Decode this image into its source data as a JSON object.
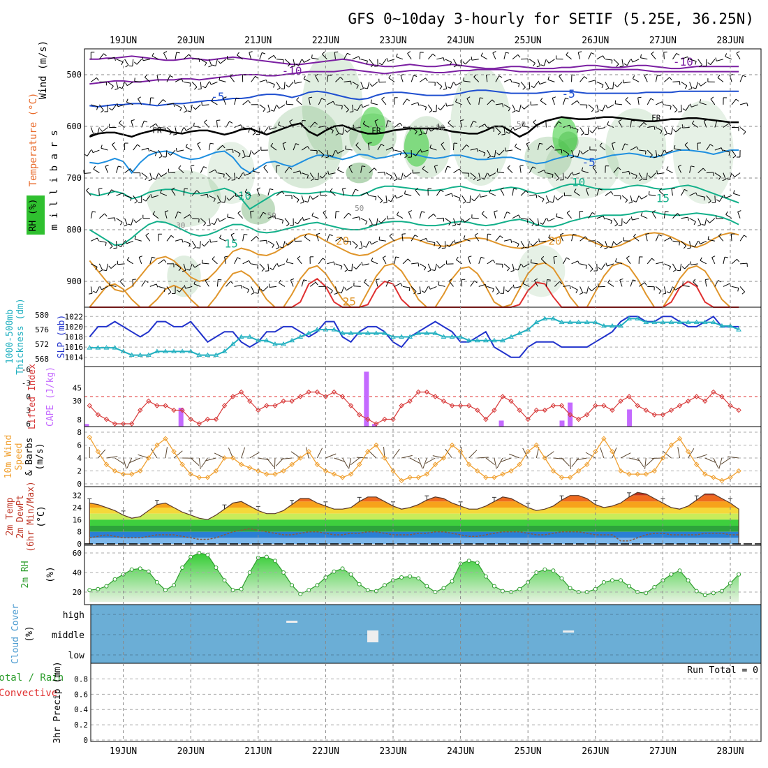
{
  "title": "GFS 0~10day 3-hourly for SETIF (5.25E, 36.25N)",
  "days": [
    "19JUN",
    "20JUN",
    "21JUN",
    "22JUN",
    "23JUN",
    "24JUN",
    "25JUN",
    "26JUN",
    "27JUN",
    "28JUN"
  ],
  "colors": {
    "temp_purple": "#7b1fa2",
    "temp_blue": "#1f4fd0",
    "temp_lightblue": "#1e8fe0",
    "temp_teal": "#12b08a",
    "temp_orange": "#e0952a",
    "temp_red": "#e03030",
    "freezing": "#000000",
    "rh_shade": "#2fc02f",
    "slp": "#2233cc",
    "thickness": "#22b0c0",
    "lifted": "#d83a3a",
    "cape": "#c46aff",
    "wind10m": "#f0a030",
    "rh2m": "#2e9e2e",
    "cloud": "#6baed6"
  },
  "chart_data": [
    {
      "type": "heatmap",
      "name": "upper_air",
      "ylabel": "m i l l i b a r s",
      "y_ticks": [
        500,
        600,
        700,
        800,
        900
      ],
      "ylim": [
        450,
        950
      ],
      "left_labels": [
        "Wind (m/s)",
        "Temperature (°C)",
        "RH (%)"
      ],
      "rh_shading": "RH (%)",
      "isotherm_labels": [
        {
          "value": "-10",
          "x_day": 2.5,
          "p": 493
        },
        {
          "value": "-10",
          "x_day": 8.3,
          "p": 476
        },
        {
          "value": "-5",
          "x_day": 1.4,
          "p": 543
        },
        {
          "value": "-5",
          "x_day": 6.6,
          "p": 538
        },
        {
          "value": "FR",
          "x_day": 0.5,
          "p": 606
        },
        {
          "value": "FR",
          "x_day": 3.75,
          "p": 606
        },
        {
          "value": "FR",
          "x_day": 7.9,
          "p": 582
        },
        {
          "value": "-5",
          "x_day": 6.9,
          "p": 670
        },
        {
          "value": "10",
          "x_day": 1.8,
          "p": 735
        },
        {
          "value": "10",
          "x_day": 6.75,
          "p": 709
        },
        {
          "value": "15",
          "x_day": 1.6,
          "p": 828
        },
        {
          "value": "15",
          "x_day": 8.0,
          "p": 740
        },
        {
          "value": "20",
          "x_day": 3.25,
          "p": 822
        },
        {
          "value": "20",
          "x_day": 6.4,
          "p": 822
        },
        {
          "value": "25",
          "x_day": 3.35,
          "p": 940
        },
        {
          "value": "30",
          "x_day": 0.85,
          "p": 790
        },
        {
          "value": "50",
          "x_day": 2.2,
          "p": 771
        },
        {
          "value": "50",
          "x_day": 3.5,
          "p": 757
        },
        {
          "value": "30",
          "x_day": 4.7,
          "p": 601
        },
        {
          "value": "50",
          "x_day": 5.9,
          "p": 594
        }
      ]
    },
    {
      "type": "line",
      "name": "slp_thickness",
      "labels_left": [
        "1000-500mb",
        "Thickness (dm)"
      ],
      "labels_right": "SLP (mb)",
      "thickness_ticks": [
        568,
        572,
        576,
        580
      ],
      "slp_ticks": [
        1014,
        1016,
        1018,
        1020,
        1022
      ],
      "series": [
        {
          "name": "SLP (mb)",
          "values": [
            1018,
            1020,
            1020,
            1021,
            1020,
            1019,
            1018,
            1019,
            1021,
            1021,
            1020,
            1020,
            1021,
            1019,
            1017,
            1018,
            1019,
            1019,
            1017,
            1016,
            1017,
            1019,
            1019,
            1020,
            1020,
            1019,
            1018,
            1019,
            1021,
            1021,
            1018,
            1017,
            1019,
            1020,
            1020,
            1019,
            1017,
            1016,
            1018,
            1019,
            1020,
            1021,
            1020,
            1019,
            1017,
            1017,
            1018,
            1019,
            1016,
            1015,
            1014,
            1014,
            1016,
            1017,
            1017,
            1017,
            1016,
            1016,
            1016,
            1016,
            1017,
            1018,
            1019,
            1021,
            1022,
            1022,
            1021,
            1021,
            1022,
            1022,
            1021,
            1020,
            1020,
            1021,
            1022,
            1020,
            1020,
            1020
          ]
        },
        {
          "name": "1000-500mb Thickness (dm)",
          "values": [
            571,
            571,
            571,
            571,
            570,
            569,
            569,
            569,
            570,
            570,
            570,
            570,
            570,
            569,
            569,
            569,
            570,
            572,
            574,
            574,
            573,
            573,
            572,
            572,
            573,
            574,
            575,
            576,
            576,
            576,
            575,
            575,
            575,
            575,
            575,
            575,
            574,
            574,
            574,
            575,
            575,
            575,
            574,
            574,
            574,
            573,
            573,
            573,
            573,
            573,
            574,
            575,
            576,
            578,
            579,
            579,
            578,
            578,
            578,
            578,
            578,
            577,
            577,
            577,
            579,
            579,
            578,
            578,
            578,
            578,
            578,
            578,
            578,
            578,
            578,
            577,
            577,
            576
          ]
        }
      ]
    },
    {
      "type": "bar",
      "name": "instability",
      "labels_left": [
        "Lifted Index",
        "CAPE (J/kg)"
      ],
      "lifted_ticks": [
        -6,
        -3,
        0,
        3,
        6
      ],
      "cape_ticks": [
        8,
        30,
        45
      ],
      "lifted_index": [
        2,
        4,
        5,
        6,
        6,
        6,
        3,
        1,
        2,
        2,
        3,
        3,
        5,
        6,
        5,
        5,
        2,
        0,
        -1,
        1,
        3,
        2,
        2,
        1,
        1,
        0,
        -1,
        -1,
        0,
        -1,
        0,
        2,
        4,
        5,
        6,
        5,
        5,
        2,
        1,
        -1,
        -1,
        0,
        1,
        2,
        2,
        2,
        3,
        5,
        3,
        0,
        1,
        3,
        5,
        3,
        3,
        2,
        2,
        4,
        5,
        4,
        2,
        2,
        3,
        1,
        0,
        2,
        3,
        4,
        4,
        3,
        2,
        1,
        0,
        1,
        -1,
        0,
        2,
        3
      ],
      "cape_bars": [
        {
          "day": -0.55,
          "value": 3
        },
        {
          "day": 0.85,
          "value": 22
        },
        {
          "day": 3.6,
          "value": 64
        },
        {
          "day": 3.72,
          "value": 3
        },
        {
          "day": 5.6,
          "value": 7
        },
        {
          "day": 6.5,
          "value": 7
        },
        {
          "day": 6.62,
          "value": 28
        },
        {
          "day": 7.5,
          "value": 20
        }
      ]
    },
    {
      "type": "line",
      "name": "wind10m",
      "labels_left": [
        "10m Wind",
        "Speed",
        "& Barbs",
        "(m/s)"
      ],
      "y_ticks": [
        0,
        2,
        4,
        6,
        8
      ],
      "series": [
        {
          "name": "10m Wind Speed (m/s)",
          "values": [
            7.2,
            5,
            3,
            2,
            1.5,
            1.5,
            2,
            4,
            6,
            7,
            5,
            3,
            1.5,
            1,
            1,
            2,
            4,
            4,
            3,
            2.5,
            2,
            1.5,
            1.5,
            2,
            3,
            4,
            5,
            3,
            2,
            1.5,
            1,
            1.5,
            3,
            5,
            6,
            4,
            2,
            0.5,
            1,
            1,
            1.5,
            3,
            4,
            6,
            5,
            3,
            2,
            1,
            1,
            1.5,
            2,
            3,
            5,
            6,
            4,
            2,
            1,
            1,
            2,
            3,
            5,
            7,
            5,
            2,
            1.5,
            1.5,
            1.5,
            2,
            4,
            6,
            7,
            5,
            3,
            1.5,
            1,
            0.5,
            1,
            2
          ]
        }
      ]
    },
    {
      "type": "area",
      "name": "temp2m",
      "labels_left": [
        "2m Temp",
        "2m DewPt",
        "(6hr Min/Max)",
        "(°C)"
      ],
      "y_ticks": [
        0,
        8,
        16,
        24,
        32
      ],
      "series": [
        {
          "name": "2m Temp",
          "values": [
            27,
            26,
            24,
            22,
            19,
            17,
            18,
            22,
            26,
            27,
            24,
            21,
            19,
            17,
            16,
            19,
            23,
            27,
            28,
            25,
            22,
            20,
            20,
            22,
            26,
            30,
            30,
            27,
            25,
            23,
            23,
            24,
            28,
            31,
            31,
            28,
            25,
            23,
            24,
            26,
            29,
            31,
            30,
            27,
            25,
            23,
            23,
            25,
            28,
            31,
            30,
            27,
            24,
            22,
            23,
            25,
            29,
            32,
            32,
            30,
            26,
            24,
            25,
            27,
            31,
            34,
            33,
            30,
            27,
            24,
            23,
            25,
            29,
            33,
            33,
            30,
            27,
            23
          ]
        },
        {
          "name": "2m DewPt",
          "values": [
            4,
            5,
            6,
            5,
            4,
            4,
            4,
            5,
            6,
            6,
            6,
            5,
            4,
            3,
            3,
            4,
            6,
            8,
            9,
            10,
            9,
            8,
            7,
            6,
            6,
            7,
            8,
            8,
            7,
            6,
            6,
            7,
            7,
            8,
            8,
            7,
            6,
            6,
            6,
            7,
            7,
            8,
            8,
            7,
            6,
            5,
            5,
            6,
            7,
            8,
            8,
            8,
            7,
            6,
            6,
            7,
            8,
            8,
            8,
            7,
            6,
            6,
            6,
            2,
            2,
            4,
            6,
            7,
            7,
            6,
            6,
            6,
            6,
            7,
            7,
            7,
            6,
            6
          ]
        }
      ]
    },
    {
      "type": "area",
      "name": "rh2m",
      "labels_left": [
        "2m RH",
        "(%)"
      ],
      "y_ticks": [
        20,
        40,
        60
      ],
      "series": [
        {
          "name": "2m RH",
          "values": [
            22,
            23,
            26,
            33,
            38,
            43,
            44,
            41,
            30,
            22,
            27,
            45,
            56,
            60,
            58,
            45,
            32,
            22,
            23,
            40,
            55,
            56,
            52,
            40,
            27,
            18,
            22,
            27,
            35,
            41,
            44,
            38,
            28,
            22,
            21,
            27,
            32,
            35,
            36,
            34,
            26,
            20,
            24,
            31,
            49,
            52,
            50,
            36,
            26,
            21,
            20,
            23,
            30,
            40,
            43,
            42,
            34,
            24,
            20,
            20,
            23,
            30,
            32,
            32,
            26,
            20,
            19,
            25,
            32,
            38,
            42,
            32,
            21,
            17,
            19,
            21,
            29,
            38
          ]
        }
      ]
    },
    {
      "type": "bar",
      "name": "cloud_cover",
      "labels_left": [
        "Cloud Cover",
        "(%)"
      ],
      "levels": [
        "high",
        "middle",
        "low"
      ],
      "gaps": [
        {
          "day": 2.5,
          "level": "high",
          "value": 5
        },
        {
          "day": 3.7,
          "level": "middle",
          "value": 45
        },
        {
          "day": 6.6,
          "level": "middle",
          "value": 5
        }
      ]
    },
    {
      "type": "bar",
      "name": "precip",
      "labels_left": [
        "Total / Rain",
        "Convective"
      ],
      "ylabel": "3hr Precip (mm)",
      "y_ticks": [
        0,
        0.2,
        0.4,
        0.6,
        0.8
      ],
      "annotation": "Run Total = 0",
      "values": []
    }
  ]
}
